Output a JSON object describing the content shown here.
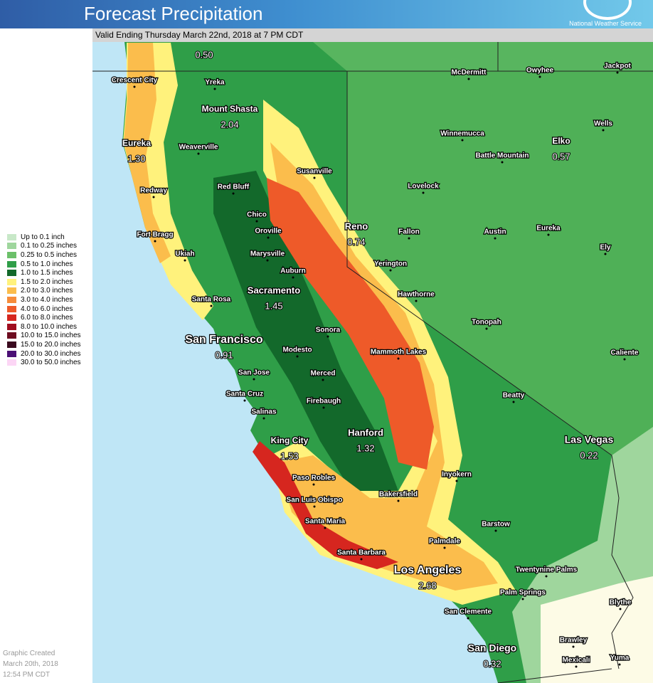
{
  "header": {
    "title": "Forecast Precipitation",
    "agency": "National Weather Service",
    "valid": "Valid Ending Thursday March 22nd, 2018 at 7 PM CDT"
  },
  "legend": [
    {
      "label": "Up to 0.1 inch",
      "color": "#c8e8c8"
    },
    {
      "label": "0.1 to 0.25 inches",
      "color": "#9fd69d"
    },
    {
      "label": "0.25 to 0.5 inches",
      "color": "#6cc06a"
    },
    {
      "label": "0.5 to 1.0 inches",
      "color": "#2f9e48"
    },
    {
      "label": "1.0 to 1.5 inches",
      "color": "#13692b"
    },
    {
      "label": "1.5 to 2.0 inches",
      "color": "#fff27c"
    },
    {
      "label": "2.0 to 3.0 inches",
      "color": "#fbbd4c"
    },
    {
      "label": "3.0 to 4.0 inches",
      "color": "#f68c3b"
    },
    {
      "label": "4.0 to 6.0 inches",
      "color": "#ee5a29"
    },
    {
      "label": "6.0 to 8.0 inches",
      "color": "#d6261f"
    },
    {
      "label": "8.0 to 10.0 inches",
      "color": "#a00d1f"
    },
    {
      "label": "10.0 to 15.0 inches",
      "color": "#6d0c20"
    },
    {
      "label": "15.0 to 20.0 inches",
      "color": "#3a0a1f"
    },
    {
      "label": "20.0 to 30.0 inches",
      "color": "#4b0f75"
    },
    {
      "label": "30.0 to 50.0 inches",
      "color": "#fcd6f5"
    }
  ],
  "places": [
    {
      "value": "0.50"
    },
    {
      "name": "Crescent City"
    },
    {
      "name": "Yreka"
    },
    {
      "name": "Mount Shasta",
      "value": "2.04"
    },
    {
      "name": "Eureka",
      "value": "1.30"
    },
    {
      "name": "Weaverville"
    },
    {
      "name": "Susanville"
    },
    {
      "name": "Redway"
    },
    {
      "name": "Red Bluff"
    },
    {
      "name": "Chico"
    },
    {
      "name": "Oroville"
    },
    {
      "name": "Fort Bragg"
    },
    {
      "name": "Ukiah"
    },
    {
      "name": "Marysville"
    },
    {
      "name": "Auburn"
    },
    {
      "name": "Sacramento",
      "value": "1.45"
    },
    {
      "name": "Santa Rosa"
    },
    {
      "name": "San Francisco",
      "value": "0.91"
    },
    {
      "name": "Sonora"
    },
    {
      "name": "Modesto"
    },
    {
      "name": "San Jose"
    },
    {
      "name": "Merced"
    },
    {
      "name": "Santa Cruz"
    },
    {
      "name": "Firebaugh"
    },
    {
      "name": "Salinas"
    },
    {
      "name": "Hanford",
      "value": "1.32"
    },
    {
      "name": "King City",
      "value": "1.53"
    },
    {
      "name": "Paso Robles"
    },
    {
      "name": "San Luis Obispo"
    },
    {
      "name": "Santa Maria"
    },
    {
      "name": "Bakersfield"
    },
    {
      "name": "Santa Barbara"
    },
    {
      "name": "Los Angeles",
      "value": "2.68"
    },
    {
      "name": "Palmdale"
    },
    {
      "name": "Inyokern"
    },
    {
      "name": "Barstow"
    },
    {
      "name": "Twentynine Palms"
    },
    {
      "name": "Palm Springs"
    },
    {
      "name": "San Clemente"
    },
    {
      "name": "San Diego",
      "value": "0.32"
    },
    {
      "name": "Brawley"
    },
    {
      "name": "Mexicali"
    },
    {
      "name": "Yuma"
    },
    {
      "name": "Blythe"
    },
    {
      "name": "Las Vegas",
      "value": "0.22"
    },
    {
      "name": "Beatty"
    },
    {
      "name": "Caliente"
    },
    {
      "name": "Tonopah"
    },
    {
      "name": "Mammoth Lakes"
    },
    {
      "name": "Hawthorne"
    },
    {
      "name": "Yerington"
    },
    {
      "name": "Reno",
      "value": "0.74"
    },
    {
      "name": "Fallon"
    },
    {
      "name": "Austin"
    },
    {
      "name": "Eureka"
    },
    {
      "name": "Ely"
    },
    {
      "name": "Lovelock"
    },
    {
      "name": "Battle Mountain"
    },
    {
      "name": "Winnemucca"
    },
    {
      "name": "Elko",
      "value": "0.57"
    },
    {
      "name": "Wells"
    },
    {
      "name": "McDermitt"
    },
    {
      "name": "Owyhee"
    },
    {
      "name": "Jackpot"
    }
  ],
  "footer": [
    "Graphic Created",
    "March 20th, 2018",
    "12:54 PM CDT"
  ]
}
